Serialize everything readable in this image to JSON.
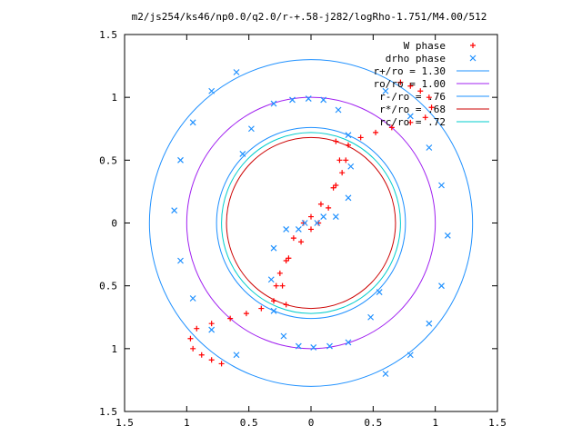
{
  "chart_data": {
    "type": "scatter",
    "title": "m2/js254/ks46/np0.0/q2.0/r-+.58-j282/logRho-1.751/M4.00/512",
    "xlabel": "",
    "ylabel": "",
    "xlim": [
      -1.5,
      1.5
    ],
    "ylim": [
      -1.5,
      1.5
    ],
    "x_ticks": [
      -1.5,
      -1,
      -0.5,
      0,
      0.5,
      1,
      1.5
    ],
    "y_ticks": [
      -1.5,
      -1,
      -0.5,
      0,
      0.5,
      1,
      1.5
    ],
    "x_tick_labels": [
      "1.5",
      "1",
      "0.5",
      "0",
      "0.5",
      "1",
      "1.5"
    ],
    "y_tick_labels": [
      "1.5",
      "1",
      "0.5",
      "0",
      "0.5",
      "1",
      "1.5"
    ],
    "grid": false,
    "legend_position": "top-right",
    "series": [
      {
        "name": "W phase",
        "kind": "points",
        "marker": "plus",
        "color": "#ff0000",
        "note_shape": "red phase curve",
        "x": [
          0.2,
          0.23,
          0.2,
          0.14,
          0.06,
          0.0,
          -0.08,
          -0.18,
          -0.25,
          -0.28,
          -0.3,
          -0.4,
          -0.52,
          -0.65,
          -0.8,
          -0.92,
          -0.97,
          -0.95,
          -0.88,
          -0.8,
          -0.72
        ],
        "y": [
          0.65,
          0.5,
          0.3,
          0.12,
          0.0,
          -0.05,
          -0.15,
          -0.28,
          -0.4,
          -0.5,
          -0.62,
          -0.68,
          -0.72,
          -0.76,
          -0.8,
          -0.84,
          -0.92,
          -1.0,
          -1.05,
          -1.09,
          -1.12
        ]
      },
      {
        "name": "drho phase",
        "kind": "points",
        "marker": "cross",
        "color": "#1e90ff",
        "x": [
          -0.55,
          -0.48,
          -0.3,
          -0.15,
          -0.02,
          0.1,
          0.22,
          0.3,
          0.32,
          0.3,
          0.2,
          0.05,
          -0.1
        ],
        "y": [
          0.55,
          0.75,
          0.95,
          0.98,
          0.99,
          0.98,
          0.9,
          0.7,
          0.45,
          0.2,
          0.05,
          0.0,
          -0.05
        ],
        "x2": [
          0.6,
          0.8,
          0.95,
          1.05,
          1.1,
          1.05,
          0.95,
          0.8,
          0.6
        ],
        "y2": [
          1.05,
          0.85,
          0.6,
          0.3,
          -0.1,
          -0.5,
          -0.8,
          -1.05,
          -1.2
        ]
      },
      {
        "name": "r+/ro = 1.30",
        "kind": "circle",
        "radius": 1.3,
        "color": "#1e90ff"
      },
      {
        "name": "ro/ro = 1.00",
        "kind": "circle",
        "radius": 1.0,
        "color": "#a020f0"
      },
      {
        "name": "r-/ro = .76",
        "kind": "circle",
        "radius": 0.76,
        "color": "#1e90ff"
      },
      {
        "name": "r*/ro = .68",
        "kind": "circle",
        "radius": 0.68,
        "color": "#cc0000"
      },
      {
        "name": "rc/ro = .72",
        "kind": "circle",
        "radius": 0.72,
        "color": "#00cccc"
      }
    ]
  }
}
